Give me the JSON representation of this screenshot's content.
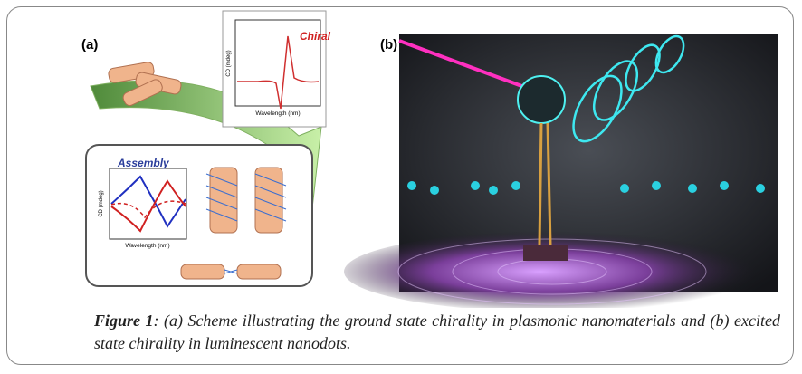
{
  "figure": {
    "panel_a": {
      "label": "(a)",
      "inset_top": {
        "title": "Chiral",
        "y_label": "CD (mdeg)",
        "x_label": "Wavelength (nm)"
      },
      "inset_bottom": {
        "title": "Assembly",
        "y_label": "CD (mdeg)",
        "x_label": "Wavelength (nm)"
      }
    },
    "panel_b": {
      "label": "(b)"
    }
  },
  "caption": {
    "label": "Figure 1",
    "text": ": (a) Scheme illustrating the ground state chirality in plasmonic nanomaterials and (b) excited state chirality in luminescent nanodots."
  }
}
